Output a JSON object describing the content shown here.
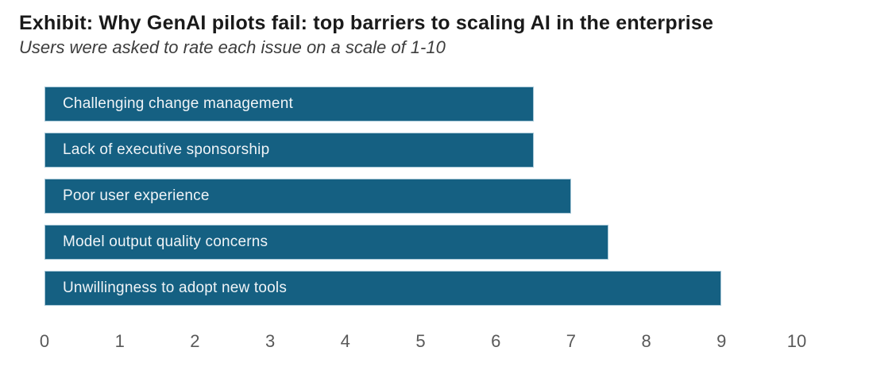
{
  "header": {
    "title": "Exhibit: Why GenAI pilots fail: top barriers to scaling AI in the enterprise",
    "subtitle": "Users were asked to rate each issue on a scale of 1-10"
  },
  "chart_data": {
    "type": "bar",
    "orientation": "horizontal",
    "title": "Exhibit: Why GenAI pilots fail: top barriers to scaling AI in the enterprise",
    "subtitle": "Users were asked to rate each issue on a scale of 1-10",
    "categories": [
      "Challenging change management",
      "Lack of executive sponsorship",
      "Poor user experience",
      "Model output quality concerns",
      "Unwillingness to adopt new tools"
    ],
    "values": [
      6.5,
      6.5,
      7,
      7.5,
      9
    ],
    "xlabel": "",
    "ylabel": "",
    "xlim": [
      0,
      10
    ],
    "x_ticks": [
      "0",
      "1",
      "2",
      "3",
      "4",
      "5",
      "6",
      "7",
      "8",
      "9",
      "10"
    ],
    "grid": false,
    "legend": "none",
    "labels_position": "inside-base",
    "colors": {
      "bar_fill": "#156082",
      "bar_border": "#a5c6d6",
      "bar_label_text": "#f0f4f7",
      "axis_tick_text": "#595959",
      "title_text": "#1a1a1a",
      "subtitle_text": "#3d3d3d"
    }
  }
}
